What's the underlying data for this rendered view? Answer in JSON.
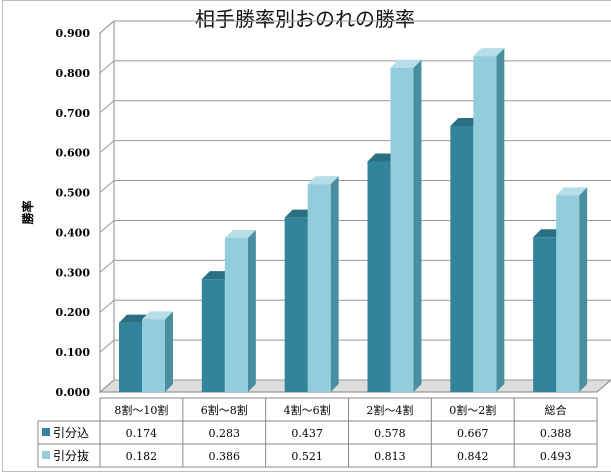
{
  "chart_data": {
    "type": "bar",
    "title": "相手勝率別おのれの勝率",
    "xlabel": "",
    "ylabel": "勝率",
    "ylim": [
      0,
      0.9
    ],
    "yticks": [
      "0.000",
      "0.100",
      "0.200",
      "0.300",
      "0.400",
      "0.500",
      "0.600",
      "0.700",
      "0.800",
      "0.900"
    ],
    "grid": true,
    "categories": [
      "8割～10割",
      "6割～8割",
      "4割～6割",
      "2割～4割",
      "0割～2割",
      "総合"
    ],
    "series": [
      {
        "name": "引分込",
        "color": "#31849b",
        "values": [
          0.174,
          0.283,
          0.437,
          0.578,
          0.667,
          0.388
        ],
        "labels": [
          "0.174",
          "0.283",
          "0.437",
          "0.578",
          "0.667",
          "0.388"
        ]
      },
      {
        "name": "引分抜",
        "color": "#92cddc",
        "values": [
          0.182,
          0.386,
          0.521,
          0.813,
          0.842,
          0.493
        ],
        "labels": [
          "0.182",
          "0.386",
          "0.521",
          "0.813",
          "0.842",
          "0.493"
        ]
      }
    ],
    "legend": "data-table"
  }
}
